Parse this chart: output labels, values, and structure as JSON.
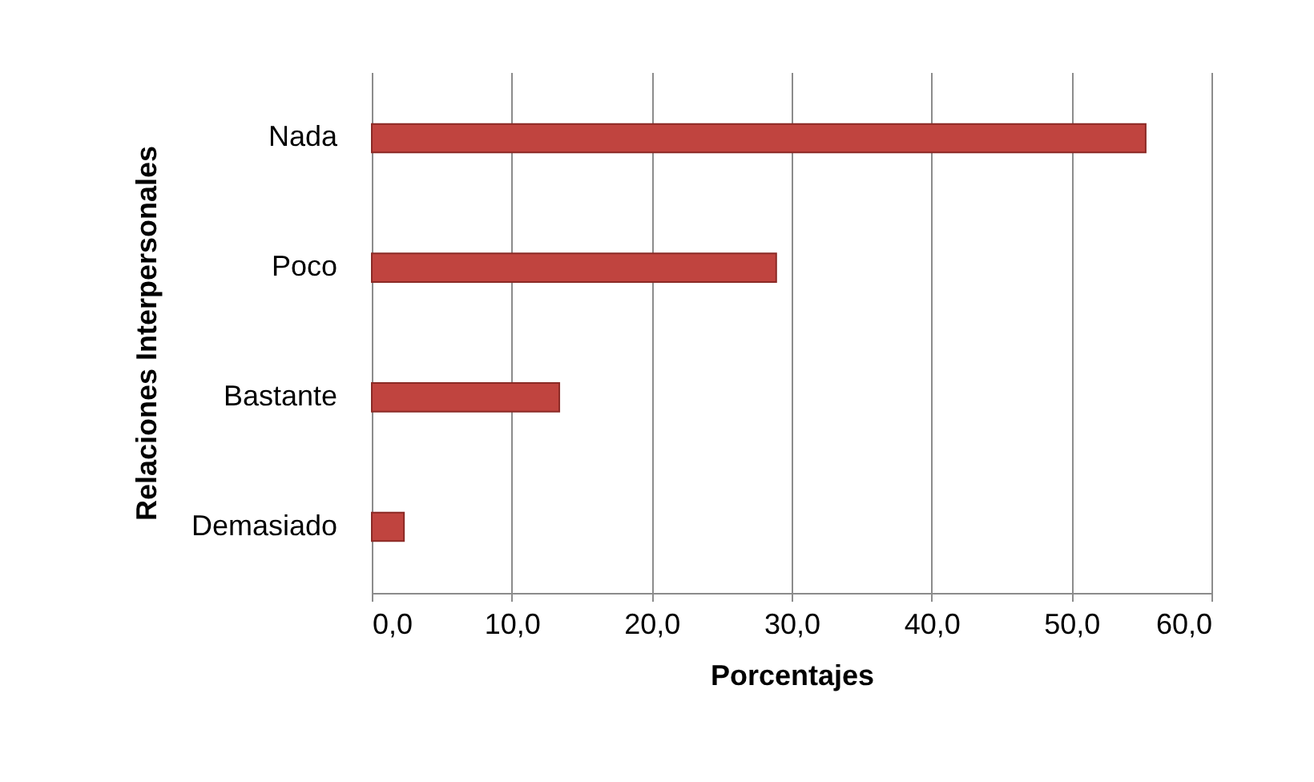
{
  "chart_data": {
    "type": "bar",
    "orientation": "horizontal",
    "xlabel": "Porcentajes",
    "ylabel": "Relaciones Interpersonales",
    "categories": [
      "Nada",
      "Poco",
      "Bastante",
      "Demasiado"
    ],
    "series": [
      {
        "color": "#c0443f",
        "values": [
          55.3,
          28.9,
          13.4,
          2.3
        ]
      }
    ],
    "xlim": [
      0,
      60
    ],
    "xticks": [
      {
        "value": 0,
        "label": "0,0"
      },
      {
        "value": 10,
        "label": "10,0"
      },
      {
        "value": 20,
        "label": "20,0"
      },
      {
        "value": 30,
        "label": "30,0"
      },
      {
        "value": 40,
        "label": "40,0"
      },
      {
        "value": 50,
        "label": "50,0"
      },
      {
        "value": 60,
        "label": "60,0"
      }
    ],
    "grid": "x",
    "legend": false
  }
}
